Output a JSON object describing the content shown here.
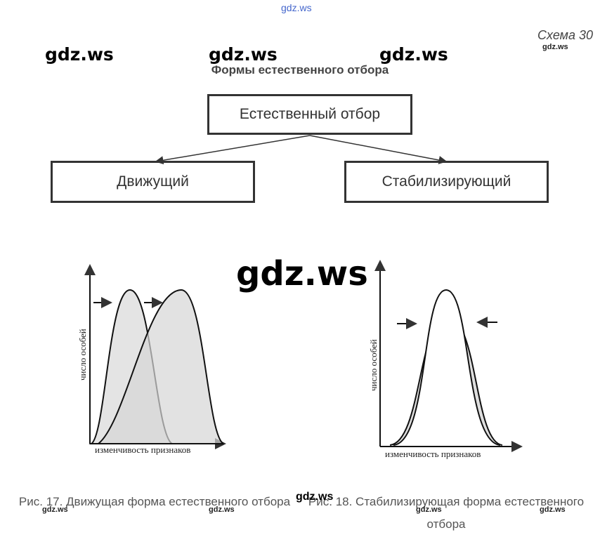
{
  "header": {
    "top_watermark": "gdz.ws",
    "scheme": "Схема 30",
    "scheme_watermark": "gdz.ws",
    "title": "Формы естественного отбора"
  },
  "watermarks": [
    "gdz.ws",
    "gdz.ws",
    "gdz.ws",
    "gdz.ws"
  ],
  "nodes": [
    {
      "label": "Естественный отбор"
    },
    {
      "label": "Движущий"
    },
    {
      "label": "Стабилизирующий"
    }
  ],
  "figures": [
    {
      "y_label": "число особей",
      "x_label": "изменчивость признаков",
      "caption": "Рис. 17. Движущая форма естественного отбора"
    },
    {
      "y_label": "число особей",
      "x_label": "изменчивость признаков",
      "caption": "Рис. 18. Стабилизирующая форма естественного отбора"
    }
  ],
  "caption_watermarks": [
    "gdz.ws",
    "gdz.ws",
    "gdz.ws",
    "gdz.ws",
    "gdz.ws"
  ]
}
